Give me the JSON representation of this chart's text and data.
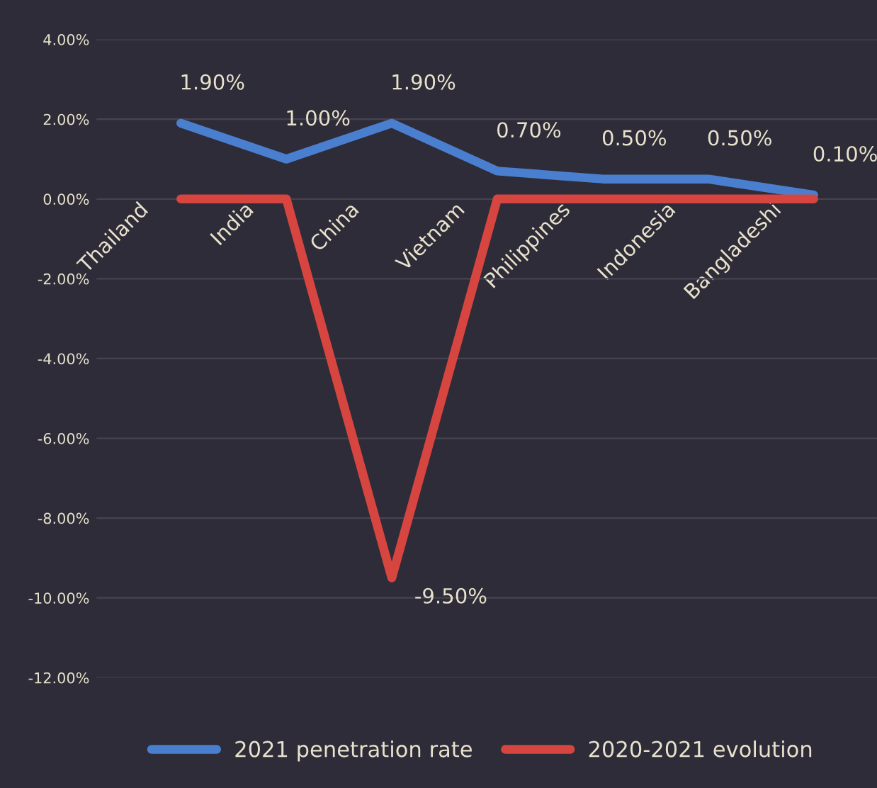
{
  "chart_data": {
    "type": "line",
    "categories": [
      "Thailand",
      "India",
      "China",
      "Vietnam",
      "Philippines",
      "Indonesia",
      "Bangladeshi"
    ],
    "series": [
      {
        "name": "2021 penetration rate",
        "color": "#4a7fd0",
        "values": [
          1.9,
          1.0,
          1.9,
          0.7,
          0.5,
          0.5,
          0.1
        ],
        "value_labels": [
          "1.90%",
          "1.00%",
          "1.90%",
          "0.70%",
          "0.50%",
          "0.50%",
          "0.10%"
        ]
      },
      {
        "name": "2020-2021 evolution",
        "color": "#d6453f",
        "values": [
          0,
          0,
          -9.5,
          0,
          0,
          0,
          0
        ],
        "value_labels": [
          null,
          null,
          "-9.50%",
          null,
          null,
          null,
          null
        ]
      }
    ],
    "ylim": [
      -12,
      4
    ],
    "yticks": [
      {
        "value": 4,
        "label": "4.00%"
      },
      {
        "value": 2,
        "label": "2.00%"
      },
      {
        "value": 0,
        "label": "0.00%"
      },
      {
        "value": -2,
        "label": "-2.00%"
      },
      {
        "value": -4,
        "label": "-4.00%"
      },
      {
        "value": -6,
        "label": "-6.00%"
      },
      {
        "value": -8,
        "label": "-8.00%"
      },
      {
        "value": -10,
        "label": "-10.00%"
      },
      {
        "value": -12,
        "label": "-12.00%"
      }
    ],
    "grid": "y",
    "legend": "bottom",
    "marker": "none",
    "line_style": "solid"
  }
}
